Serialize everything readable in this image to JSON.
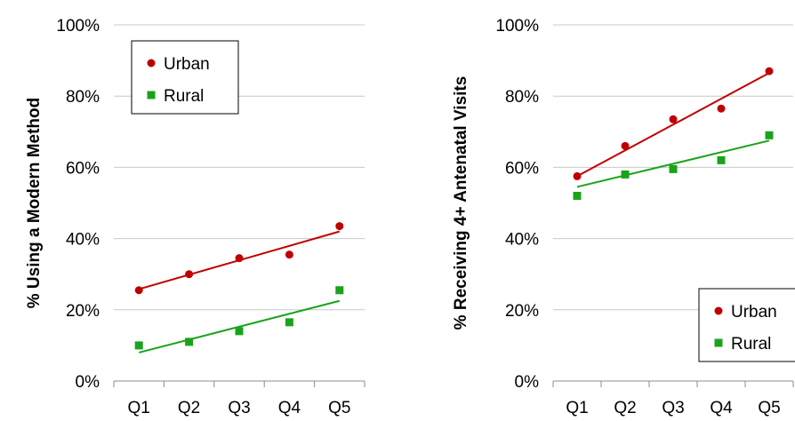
{
  "chart_data": [
    {
      "type": "scatter",
      "title": "",
      "xlabel": "",
      "ylabel": "% Using a Modern Method",
      "categories": [
        "Q1",
        "Q2",
        "Q3",
        "Q4",
        "Q5"
      ],
      "ylim": [
        0,
        100
      ],
      "yticks": [
        "0%",
        "20%",
        "40%",
        "60%",
        "80%",
        "100%"
      ],
      "grid": true,
      "legend_position": "top-left",
      "series": [
        {
          "name": "Urban",
          "color": "#c00000",
          "marker": "circle",
          "values": [
            25.5,
            30.0,
            34.5,
            35.5,
            43.5
          ],
          "trendline": [
            25.8,
            42.0
          ]
        },
        {
          "name": "Rural",
          "color": "#1aa31a",
          "marker": "square",
          "values": [
            10.0,
            11.0,
            14.0,
            16.5,
            25.5
          ],
          "trendline": [
            8.0,
            22.5
          ]
        }
      ]
    },
    {
      "type": "scatter",
      "title": "",
      "xlabel": "",
      "ylabel": "% Receiving 4+ Antenatal Visits",
      "categories": [
        "Q1",
        "Q2",
        "Q3",
        "Q4",
        "Q5"
      ],
      "ylim": [
        0,
        100
      ],
      "yticks": [
        "0%",
        "20%",
        "40%",
        "60%",
        "80%",
        "100%"
      ],
      "grid": true,
      "legend_position": "bottom-right",
      "series": [
        {
          "name": "Urban",
          "color": "#c00000",
          "marker": "circle",
          "values": [
            57.5,
            66.0,
            73.5,
            76.5,
            87.0
          ],
          "trendline": [
            57.5,
            86.5
          ]
        },
        {
          "name": "Rural",
          "color": "#1aa31a",
          "marker": "square",
          "values": [
            52.0,
            58.0,
            59.5,
            62.0,
            69.0
          ],
          "trendline": [
            54.5,
            67.5
          ]
        }
      ]
    }
  ]
}
